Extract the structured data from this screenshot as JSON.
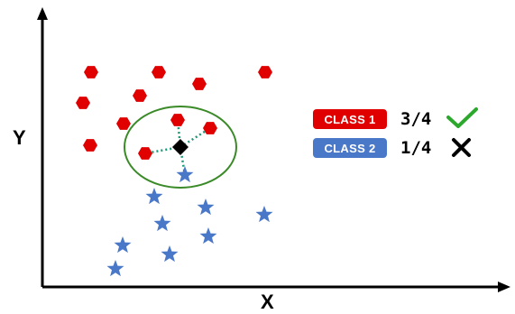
{
  "axes": {
    "x_label": "X",
    "y_label": "Y"
  },
  "legend": [
    {
      "label": "CLASS 1",
      "votes": "3/4",
      "result_icon": "check-icon",
      "color": "#e00000"
    },
    {
      "label": "CLASS 2",
      "votes": "1/4",
      "result_icon": "cross-icon",
      "color": "#4a78c8"
    }
  ],
  "colors": {
    "class1": "#e00000",
    "class2": "#4a78c8",
    "query_point": "#000000",
    "neighbor_circle": "#3a8a28",
    "neighbor_lines": "#1a9a7a",
    "check": "#2ca82c",
    "axis": "#000000"
  },
  "icons": {
    "class1_marker": "hexagon-icon",
    "class2_marker": "star-icon",
    "query_marker": "diamond-icon"
  }
}
